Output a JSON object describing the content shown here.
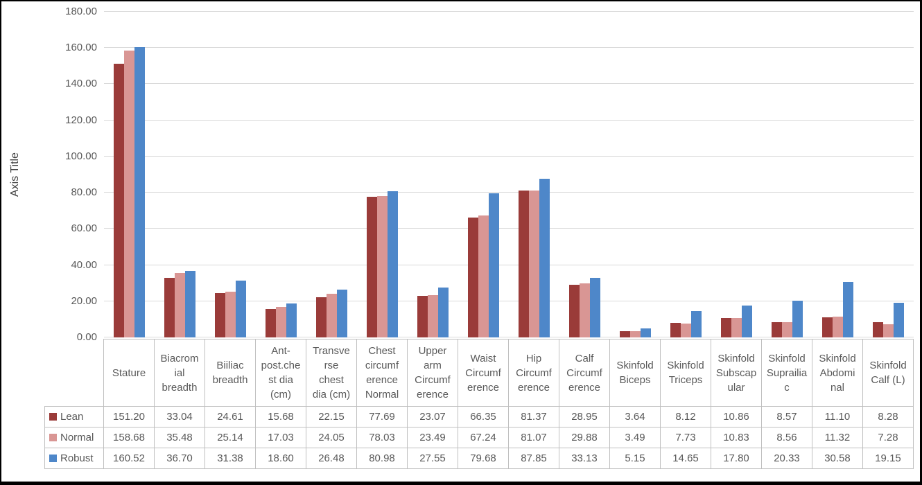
{
  "chart_data": {
    "type": "bar",
    "title": "",
    "xlabel": "",
    "ylabel": "Axis Title",
    "ylim": [
      0,
      180
    ],
    "ytick_step": 20,
    "ytick_format_decimals": 2,
    "grid": true,
    "legend_position": "table-left",
    "gridline_color": "#d9d9d9",
    "table_border_color": "#bfbfbf",
    "text_color": "#595959",
    "categories": [
      "Stature",
      "Biacromial breadth",
      "Biiliac breadth",
      "Ant-post.chest dia (cm)",
      "Transverse chest dia (cm)",
      "Chest circumference Normal",
      "Upper arm Circumference",
      "Waist Circumference",
      "Hip Circumference",
      "Calf Circumference",
      "Skinfold Biceps",
      "Skinfold Triceps",
      "Skinfold Subscapular",
      "Skinfold Suprailiac",
      "Skinfold Abdominal",
      "Skinfold Calf (L)"
    ],
    "categories_wrapped": [
      "Stature",
      "Biacrom\nial\nbreadth",
      "Biiliac\nbreadth",
      "Ant-\npost.che\nst dia\n(cm)",
      "Transve\nrse\nchest\ndia (cm)",
      "Chest\ncircumf\nerence\nNormal",
      "Upper\narm\nCircumf\nerence",
      "Waist\nCircumf\nerence",
      "Hip\nCircumf\nerence",
      "Calf\nCircumf\nerence",
      "Skinfold\nBiceps",
      "Skinfold\nTriceps",
      "Skinfold\nSubscap\nular",
      "Skinfold\nSuprailia\nc",
      "Skinfold\nAbdomi\nnal",
      "Skinfold\nCalf (L)"
    ],
    "series": [
      {
        "name": "Lean",
        "color": "#9a3b39",
        "values": [
          151.2,
          33.04,
          24.61,
          15.68,
          22.15,
          77.69,
          23.07,
          66.35,
          81.37,
          28.95,
          3.64,
          8.12,
          10.86,
          8.57,
          11.1,
          8.28
        ]
      },
      {
        "name": "Normal",
        "color": "#d99694",
        "values": [
          158.68,
          35.48,
          25.14,
          17.03,
          24.05,
          78.03,
          23.49,
          67.24,
          81.07,
          29.88,
          3.49,
          7.73,
          10.83,
          8.56,
          11.32,
          7.28
        ]
      },
      {
        "name": "Robust",
        "color": "#4e87c9",
        "values": [
          160.52,
          36.7,
          31.38,
          18.6,
          26.48,
          80.98,
          27.55,
          79.68,
          87.85,
          33.13,
          5.15,
          14.65,
          17.8,
          20.33,
          30.58,
          19.15
        ]
      }
    ]
  }
}
